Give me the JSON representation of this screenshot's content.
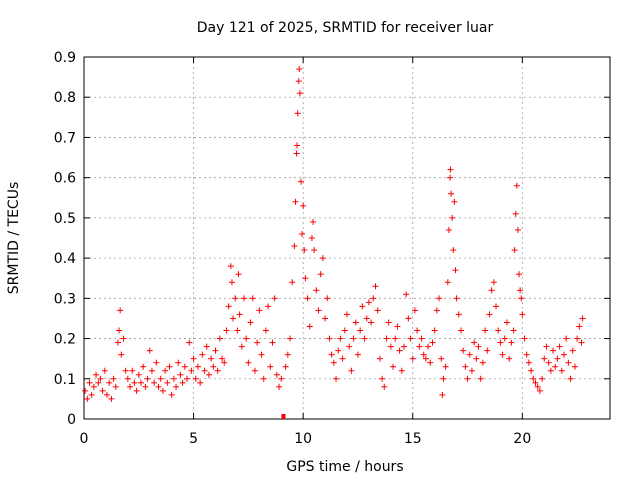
{
  "chart_data": {
    "type": "scatter",
    "title": "Day 121 of 2025, SRMTID for receiver luar",
    "xlabel": "GPS time / hours",
    "ylabel": "SRMTID / TECUs",
    "xlim": [
      0,
      24
    ],
    "ylim": [
      0,
      0.9
    ],
    "xticks": [
      0,
      5,
      10,
      15,
      20
    ],
    "xtick_labels": [
      "0",
      "5",
      "10",
      "15",
      "20"
    ],
    "yticks": [
      0,
      0.1,
      0.2,
      0.3,
      0.4,
      0.5,
      0.6,
      0.7,
      0.8,
      0.9
    ],
    "ytick_labels": [
      "0",
      "0.1",
      "0.2",
      "0.3",
      "0.4",
      "0.5",
      "0.6",
      "0.7",
      "0.8",
      "0.9"
    ],
    "grid": true,
    "marker": "+",
    "marker_color": "#ff0000",
    "gap_marker": {
      "x": 9.1,
      "y": 0.0,
      "color": "#ff0000"
    },
    "series": [
      {
        "name": "SRMTID",
        "points": [
          [
            0.05,
            0.07
          ],
          [
            0.15,
            0.05
          ],
          [
            0.25,
            0.09
          ],
          [
            0.35,
            0.06
          ],
          [
            0.45,
            0.08
          ],
          [
            0.55,
            0.11
          ],
          [
            0.65,
            0.09
          ],
          [
            0.75,
            0.1
          ],
          [
            0.85,
            0.07
          ],
          [
            0.95,
            0.12
          ],
          [
            1.05,
            0.06
          ],
          [
            1.15,
            0.09
          ],
          [
            1.25,
            0.05
          ],
          [
            1.35,
            0.1
          ],
          [
            1.45,
            0.08
          ],
          [
            1.55,
            0.19
          ],
          [
            1.6,
            0.22
          ],
          [
            1.65,
            0.27
          ],
          [
            1.7,
            0.16
          ],
          [
            1.8,
            0.2
          ],
          [
            1.9,
            0.12
          ],
          [
            2.0,
            0.1
          ],
          [
            2.1,
            0.08
          ],
          [
            2.2,
            0.12
          ],
          [
            2.3,
            0.09
          ],
          [
            2.4,
            0.07
          ],
          [
            2.5,
            0.11
          ],
          [
            2.6,
            0.09
          ],
          [
            2.7,
            0.13
          ],
          [
            2.8,
            0.08
          ],
          [
            2.9,
            0.1
          ],
          [
            3.0,
            0.17
          ],
          [
            3.1,
            0.12
          ],
          [
            3.2,
            0.09
          ],
          [
            3.3,
            0.14
          ],
          [
            3.4,
            0.08
          ],
          [
            3.5,
            0.1
          ],
          [
            3.6,
            0.07
          ],
          [
            3.7,
            0.12
          ],
          [
            3.8,
            0.09
          ],
          [
            3.9,
            0.13
          ],
          [
            4.0,
            0.06
          ],
          [
            4.1,
            0.1
          ],
          [
            4.2,
            0.08
          ],
          [
            4.3,
            0.14
          ],
          [
            4.4,
            0.11
          ],
          [
            4.5,
            0.09
          ],
          [
            4.6,
            0.13
          ],
          [
            4.7,
            0.1
          ],
          [
            4.8,
            0.19
          ],
          [
            4.9,
            0.12
          ],
          [
            5.0,
            0.15
          ],
          [
            5.1,
            0.1
          ],
          [
            5.2,
            0.13
          ],
          [
            5.3,
            0.09
          ],
          [
            5.4,
            0.16
          ],
          [
            5.5,
            0.12
          ],
          [
            5.6,
            0.18
          ],
          [
            5.7,
            0.11
          ],
          [
            5.8,
            0.15
          ],
          [
            5.9,
            0.13
          ],
          [
            6.0,
            0.17
          ],
          [
            6.1,
            0.12
          ],
          [
            6.2,
            0.2
          ],
          [
            6.3,
            0.15
          ],
          [
            6.4,
            0.14
          ],
          [
            6.5,
            0.22
          ],
          [
            6.6,
            0.28
          ],
          [
            6.7,
            0.38
          ],
          [
            6.75,
            0.34
          ],
          [
            6.8,
            0.25
          ],
          [
            6.9,
            0.3
          ],
          [
            7.0,
            0.22
          ],
          [
            7.05,
            0.36
          ],
          [
            7.1,
            0.26
          ],
          [
            7.2,
            0.18
          ],
          [
            7.3,
            0.3
          ],
          [
            7.4,
            0.2
          ],
          [
            7.5,
            0.14
          ],
          [
            7.6,
            0.24
          ],
          [
            7.7,
            0.3
          ],
          [
            7.8,
            0.12
          ],
          [
            7.9,
            0.19
          ],
          [
            8.0,
            0.27
          ],
          [
            8.1,
            0.16
          ],
          [
            8.2,
            0.1
          ],
          [
            8.3,
            0.22
          ],
          [
            8.4,
            0.28
          ],
          [
            8.5,
            0.13
          ],
          [
            8.6,
            0.19
          ],
          [
            8.7,
            0.3
          ],
          [
            8.8,
            0.11
          ],
          [
            8.9,
            0.08
          ],
          [
            9.0,
            0.1
          ],
          [
            9.2,
            0.13
          ],
          [
            9.3,
            0.16
          ],
          [
            9.4,
            0.2
          ],
          [
            9.5,
            0.34
          ],
          [
            9.6,
            0.43
          ],
          [
            9.65,
            0.54
          ],
          [
            9.7,
            0.66
          ],
          [
            9.72,
            0.68
          ],
          [
            9.75,
            0.76
          ],
          [
            9.8,
            0.84
          ],
          [
            9.82,
            0.87
          ],
          [
            9.85,
            0.81
          ],
          [
            9.9,
            0.59
          ],
          [
            9.95,
            0.46
          ],
          [
            10.0,
            0.53
          ],
          [
            10.05,
            0.42
          ],
          [
            10.1,
            0.35
          ],
          [
            10.2,
            0.3
          ],
          [
            10.3,
            0.23
          ],
          [
            10.4,
            0.45
          ],
          [
            10.45,
            0.49
          ],
          [
            10.5,
            0.42
          ],
          [
            10.6,
            0.32
          ],
          [
            10.7,
            0.27
          ],
          [
            10.8,
            0.36
          ],
          [
            10.9,
            0.4
          ],
          [
            11.0,
            0.25
          ],
          [
            11.1,
            0.3
          ],
          [
            11.2,
            0.2
          ],
          [
            11.3,
            0.16
          ],
          [
            11.4,
            0.14
          ],
          [
            11.5,
            0.1
          ],
          [
            11.6,
            0.17
          ],
          [
            11.7,
            0.2
          ],
          [
            11.8,
            0.15
          ],
          [
            11.9,
            0.22
          ],
          [
            12.0,
            0.26
          ],
          [
            12.1,
            0.18
          ],
          [
            12.2,
            0.12
          ],
          [
            12.3,
            0.2
          ],
          [
            12.4,
            0.24
          ],
          [
            12.5,
            0.16
          ],
          [
            12.6,
            0.22
          ],
          [
            12.7,
            0.28
          ],
          [
            12.8,
            0.2
          ],
          [
            12.9,
            0.25
          ],
          [
            13.0,
            0.29
          ],
          [
            13.1,
            0.24
          ],
          [
            13.2,
            0.3
          ],
          [
            13.3,
            0.33
          ],
          [
            13.4,
            0.27
          ],
          [
            13.5,
            0.15
          ],
          [
            13.6,
            0.1
          ],
          [
            13.7,
            0.08
          ],
          [
            13.8,
            0.2
          ],
          [
            13.9,
            0.24
          ],
          [
            14.0,
            0.18
          ],
          [
            14.1,
            0.13
          ],
          [
            14.2,
            0.2
          ],
          [
            14.3,
            0.23
          ],
          [
            14.4,
            0.17
          ],
          [
            14.5,
            0.12
          ],
          [
            14.6,
            0.18
          ],
          [
            14.7,
            0.31
          ],
          [
            14.8,
            0.25
          ],
          [
            14.9,
            0.2
          ],
          [
            15.0,
            0.15
          ],
          [
            15.1,
            0.27
          ],
          [
            15.2,
            0.22
          ],
          [
            15.3,
            0.18
          ],
          [
            15.4,
            0.2
          ],
          [
            15.5,
            0.16
          ],
          [
            15.6,
            0.15
          ],
          [
            15.7,
            0.18
          ],
          [
            15.8,
            0.14
          ],
          [
            15.9,
            0.19
          ],
          [
            16.0,
            0.22
          ],
          [
            16.1,
            0.27
          ],
          [
            16.2,
            0.3
          ],
          [
            16.3,
            0.15
          ],
          [
            16.35,
            0.06
          ],
          [
            16.4,
            0.1
          ],
          [
            16.5,
            0.13
          ],
          [
            16.6,
            0.34
          ],
          [
            16.65,
            0.47
          ],
          [
            16.7,
            0.6
          ],
          [
            16.72,
            0.62
          ],
          [
            16.75,
            0.56
          ],
          [
            16.8,
            0.5
          ],
          [
            16.85,
            0.42
          ],
          [
            16.9,
            0.54
          ],
          [
            16.95,
            0.37
          ],
          [
            17.0,
            0.3
          ],
          [
            17.1,
            0.26
          ],
          [
            17.2,
            0.22
          ],
          [
            17.3,
            0.17
          ],
          [
            17.4,
            0.13
          ],
          [
            17.5,
            0.1
          ],
          [
            17.6,
            0.16
          ],
          [
            17.7,
            0.12
          ],
          [
            17.8,
            0.19
          ],
          [
            17.9,
            0.15
          ],
          [
            18.0,
            0.18
          ],
          [
            18.1,
            0.1
          ],
          [
            18.2,
            0.14
          ],
          [
            18.3,
            0.22
          ],
          [
            18.4,
            0.17
          ],
          [
            18.5,
            0.26
          ],
          [
            18.6,
            0.32
          ],
          [
            18.7,
            0.34
          ],
          [
            18.8,
            0.28
          ],
          [
            18.9,
            0.22
          ],
          [
            19.0,
            0.19
          ],
          [
            19.1,
            0.16
          ],
          [
            19.2,
            0.2
          ],
          [
            19.3,
            0.24
          ],
          [
            19.4,
            0.15
          ],
          [
            19.5,
            0.19
          ],
          [
            19.6,
            0.22
          ],
          [
            19.65,
            0.42
          ],
          [
            19.7,
            0.51
          ],
          [
            19.75,
            0.58
          ],
          [
            19.8,
            0.47
          ],
          [
            19.85,
            0.36
          ],
          [
            19.9,
            0.32
          ],
          [
            19.95,
            0.3
          ],
          [
            20.0,
            0.26
          ],
          [
            20.1,
            0.2
          ],
          [
            20.2,
            0.16
          ],
          [
            20.3,
            0.14
          ],
          [
            20.4,
            0.12
          ],
          [
            20.5,
            0.1
          ],
          [
            20.6,
            0.09
          ],
          [
            20.7,
            0.08
          ],
          [
            20.8,
            0.07
          ],
          [
            20.9,
            0.1
          ],
          [
            21.0,
            0.15
          ],
          [
            21.1,
            0.18
          ],
          [
            21.2,
            0.14
          ],
          [
            21.3,
            0.12
          ],
          [
            21.4,
            0.17
          ],
          [
            21.5,
            0.13
          ],
          [
            21.6,
            0.15
          ],
          [
            21.7,
            0.18
          ],
          [
            21.8,
            0.12
          ],
          [
            21.9,
            0.16
          ],
          [
            22.0,
            0.2
          ],
          [
            22.1,
            0.14
          ],
          [
            22.2,
            0.1
          ],
          [
            22.3,
            0.17
          ],
          [
            22.4,
            0.13
          ],
          [
            22.5,
            0.2
          ],
          [
            22.6,
            0.23
          ],
          [
            22.7,
            0.19
          ],
          [
            22.75,
            0.25
          ]
        ]
      }
    ]
  }
}
